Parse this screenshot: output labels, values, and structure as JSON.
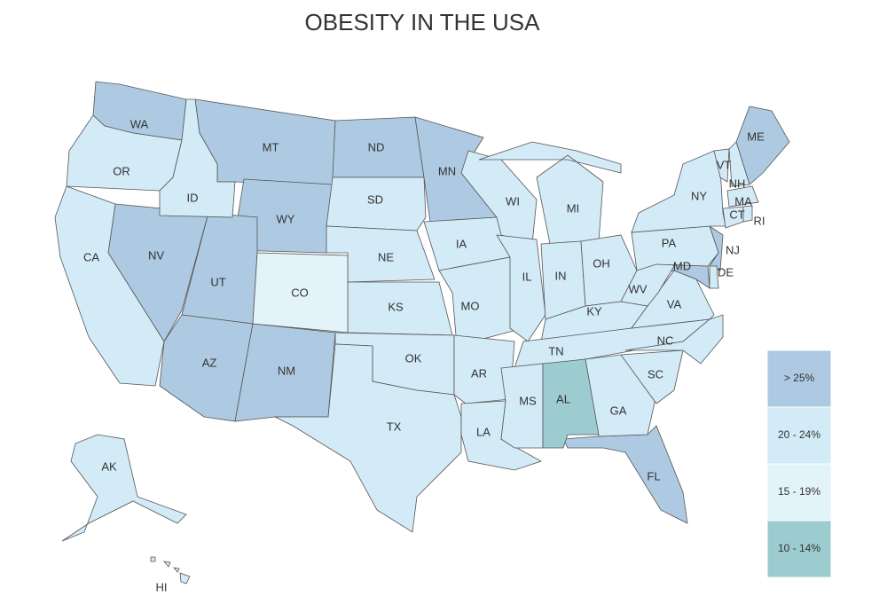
{
  "title": "OBESITY IN THE USA",
  "legend": [
    {
      "label": "> 25%",
      "color": "#aecae2",
      "states": [
        "WA",
        "MT",
        "ND",
        "MN",
        "WY",
        "NV",
        "UT",
        "AZ",
        "NM",
        "ME",
        "NJ",
        "MD",
        "FL"
      ]
    },
    {
      "label": "20 - 24%",
      "color": "#d3eaf7",
      "states": [
        "OR",
        "ID",
        "CA",
        "SD",
        "NE",
        "KS",
        "OK",
        "TX",
        "IA",
        "MO",
        "AR",
        "LA",
        "WI",
        "IL",
        "MI",
        "IN",
        "OH",
        "KY",
        "TN",
        "MS",
        "GA",
        "SC",
        "NC",
        "VA",
        "WV",
        "PA",
        "NY",
        "VT",
        "NH",
        "MA",
        "CT",
        "RI",
        "DE",
        "AK",
        "HI"
      ]
    },
    {
      "label": "15 - 19%",
      "color": "#e3f3fa",
      "states": [
        "CO"
      ]
    },
    {
      "label": "10 - 14%",
      "color": "#9ccbd0",
      "states": [
        "AL"
      ]
    }
  ]
}
